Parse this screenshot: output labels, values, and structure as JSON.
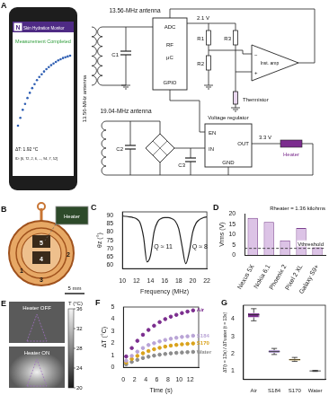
{
  "diagram": {
    "panel": "A",
    "phone": {
      "logo": "N",
      "app_title": "Skin Hydration Monitor",
      "status": "Measurement Completed",
      "trace": [
        0.15,
        0.35,
        0.55,
        0.7,
        0.85,
        0.98,
        1.1,
        1.2,
        1.3,
        1.38,
        1.45,
        1.52,
        1.58,
        1.63,
        1.68,
        1.72,
        1.76,
        1.8,
        1.83,
        1.86,
        1.88,
        1.9,
        1.92
      ],
      "readout": "ΔT: 1.92 °C",
      "id_line": "ID: [6, 72, 2, 6, ..., 94, 7, 52]"
    },
    "phone_antenna": "13.56-MHz antenna",
    "circuit": {
      "antenna_13": "13.56-MHz antenna",
      "c1": "C1",
      "mcu": [
        "ADC",
        "RF",
        "μC",
        "GPIO"
      ],
      "v21": "2.1 V",
      "r1": "R1",
      "r2": "R2",
      "r3": "R3",
      "minus": "−",
      "plus": "+",
      "amp": "Inst. amp",
      "thermistor": "Thermistor",
      "antenna_19": "19.04-MHz antenna",
      "c2": "C2",
      "c3": "C3",
      "regulator": "Voltage regulator",
      "pins": [
        "EN",
        "IN",
        "OUT",
        "GND"
      ],
      "v33": "3.3 V",
      "heater": "Heater"
    }
  },
  "photo": {
    "panel": "B",
    "inset_label": "Heater",
    "numbers": [
      "1",
      "2",
      "3",
      "4",
      "5"
    ],
    "scale_bar": "5 mm"
  },
  "thermal": {
    "panel": "E",
    "images": [
      "Heater OFF",
      "Heater ON"
    ],
    "colorbar": {
      "title": "T (°C)",
      "range": [
        20,
        36
      ],
      "ticks": [
        20,
        24,
        28,
        32,
        36
      ]
    }
  },
  "chart_data": [
    {
      "panel": "C",
      "type": "line",
      "x": [
        10,
        10.5,
        11,
        11.5,
        12,
        12.5,
        13,
        13.5,
        14,
        14.5,
        15,
        15.5,
        16,
        16.5,
        17,
        17.5,
        18,
        18.5,
        19,
        19.5,
        20,
        20.5,
        21,
        21.5,
        22
      ],
      "values": [
        89.5,
        89.3,
        89,
        88.6,
        87.8,
        85.5,
        77,
        62,
        66,
        80,
        86,
        88,
        88.6,
        88.6,
        88,
        86.5,
        82,
        71,
        61,
        68,
        80,
        85.5,
        87.5,
        88.5,
        89
      ],
      "color": "#222222",
      "xlim": [
        10,
        22
      ],
      "xticks": [
        10,
        12,
        14,
        16,
        18,
        20,
        22
      ],
      "ylim": [
        58,
        92
      ],
      "yticks": [
        60,
        65,
        70,
        75,
        80,
        85,
        90
      ],
      "x_label": "Frequency (MHz)",
      "y_label": "θz (°)",
      "grid": false,
      "annotations": [
        {
          "text": "Q ≈ 11",
          "x": 15.8,
          "y": 70
        },
        {
          "text": "Q ≈ 8",
          "x": 21,
          "y": 70
        }
      ]
    },
    {
      "panel": "D",
      "type": "bar",
      "categories": [
        "Nexus 5X",
        "Nokia 6.1",
        "Phoenix 2",
        "Pixel 2 XL",
        "Galaxy S9+"
      ],
      "values": [
        18,
        16,
        7.2,
        13.1,
        3.8
      ],
      "color": "#dcc3e6",
      "ylim": [
        0,
        20
      ],
      "yticks": [
        0,
        5,
        10,
        15,
        20
      ],
      "y_label": "Vrms (V)",
      "grid": false,
      "annotations": [
        {
          "text": "Rheater = 1.36 kilohms"
        }
      ],
      "threshold": {
        "value": 3.3,
        "label": "Vthreshold"
      }
    },
    {
      "panel": "F",
      "type": "scatter",
      "x": [
        0.5,
        1.5,
        2.5,
        3.5,
        4.5,
        5.5,
        6.5,
        7.5,
        8.5,
        9.5,
        10.5,
        11.5,
        12.5
      ],
      "series": [
        {
          "name": "Air",
          "color": "#7b2d8e",
          "values": [
            0.9,
            1.6,
            2.2,
            2.7,
            3.1,
            3.45,
            3.75,
            4.0,
            4.2,
            4.35,
            4.5,
            4.62,
            4.72
          ]
        },
        {
          "name": "S184",
          "color": "#b9a4d6",
          "values": [
            0.55,
            0.95,
            1.3,
            1.6,
            1.85,
            2.0,
            2.15,
            2.27,
            2.37,
            2.45,
            2.52,
            2.57,
            2.62
          ]
        },
        {
          "name": "S170",
          "color": "#d9a21b",
          "values": [
            0.4,
            0.7,
            0.95,
            1.17,
            1.35,
            1.5,
            1.62,
            1.72,
            1.8,
            1.86,
            1.91,
            1.95,
            1.98
          ]
        },
        {
          "name": "Water",
          "color": "#8c8c8c",
          "values": [
            0.25,
            0.45,
            0.62,
            0.77,
            0.88,
            0.97,
            1.05,
            1.11,
            1.16,
            1.2,
            1.23,
            1.26,
            1.28
          ]
        }
      ],
      "xlim": [
        0,
        13.5
      ],
      "xticks": [
        0,
        2,
        4,
        6,
        8,
        10,
        12
      ],
      "ylim": [
        0,
        5
      ],
      "yticks": [
        0,
        1,
        2,
        3,
        4,
        5
      ],
      "x_label": "Time (s)",
      "y_label": "ΔT (°C)",
      "grid": false,
      "marker": "circle"
    },
    {
      "panel": "G",
      "type": "box",
      "categories": [
        "Air",
        "S184",
        "S170",
        "Water"
      ],
      "box": [
        [
          3.9,
          4.1,
          4.25,
          4.35,
          4.6
        ],
        [
          1.95,
          2.05,
          2.12,
          2.2,
          2.3
        ],
        [
          1.55,
          1.6,
          1.65,
          1.7,
          1.78
        ],
        [
          0.97,
          0.99,
          1.0,
          1.01,
          1.03
        ]
      ],
      "colors": [
        "#7b2d8e",
        "#b9a4d6",
        "#d9a21b",
        "#8c8c8c"
      ],
      "ylim": [
        0.5,
        4.8
      ],
      "yticks": [
        1,
        2,
        3,
        4
      ],
      "y_label": "ΔT(t = 13s) / ΔTwater (t = 13s)",
      "grid": false
    }
  ]
}
